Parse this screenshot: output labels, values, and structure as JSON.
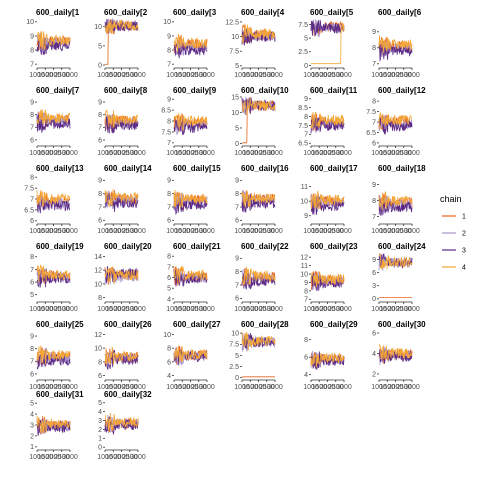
{
  "chart_data": {
    "type": "line",
    "facet_layout": {
      "columns": 6,
      "rows": 6
    },
    "x_ticks": [
      1000,
      1500,
      2000,
      2500,
      3000
    ],
    "xlim": [
      1000,
      3000
    ],
    "legend": {
      "title": "chain",
      "position": "right",
      "entries": [
        {
          "label": "1",
          "color": "#e8641b"
        },
        {
          "label": "2",
          "color": "#a795c8"
        },
        {
          "label": "3",
          "color": "#5b2a86"
        },
        {
          "label": "4",
          "color": "#f4a636"
        }
      ]
    },
    "panels": [
      {
        "title": "600_daily[1",
        "yticks": [
          7,
          8,
          9,
          10
        ],
        "ylim": [
          6.8,
          10.2
        ],
        "means": [
          8.6,
          8.5,
          8.3,
          8.7
        ]
      },
      {
        "title": "600_daily[2",
        "yticks": [
          0,
          5,
          10
        ],
        "ylim": [
          -0.5,
          12
        ],
        "means": [
          10.3,
          10.4,
          10.2,
          10.3
        ],
        "stuck": {
          "chain": 1,
          "value": 0.2,
          "until": 1200
        }
      },
      {
        "title": "600_daily[3",
        "yticks": [
          7,
          8,
          9,
          10
        ],
        "ylim": [
          6.8,
          10.2
        ],
        "means": [
          8.4,
          8.2,
          8.0,
          8.5
        ]
      },
      {
        "title": "600_daily[4",
        "yticks": [
          5.0,
          7.5,
          10.0,
          12.5
        ],
        "ylim": [
          4.8,
          13
        ],
        "means": [
          10.3,
          10.1,
          10.0,
          10.5
        ]
      },
      {
        "title": "600_daily[5",
        "yticks": [
          0.0,
          2.5,
          5.0,
          7.5
        ],
        "ylim": [
          -0.3,
          8.5
        ],
        "means": [
          7.0,
          6.9,
          6.8,
          7.1
        ],
        "stuck": {
          "chain": 4,
          "value": 0.3,
          "until": 2800
        }
      },
      {
        "title": "600_daily[6",
        "yticks": [
          7,
          8,
          9
        ],
        "ylim": [
          6.8,
          9.8
        ],
        "means": [
          8.1,
          8.0,
          7.8,
          8.2
        ]
      },
      {
        "title": "600_daily[7",
        "yticks": [
          6,
          7,
          8,
          9
        ],
        "ylim": [
          5.6,
          9.4
        ],
        "means": [
          7.6,
          7.5,
          7.3,
          7.7
        ]
      },
      {
        "title": "600_daily[8",
        "yticks": [
          6,
          7,
          8,
          9
        ],
        "ylim": [
          5.6,
          9.4
        ],
        "means": [
          7.5,
          7.4,
          7.2,
          7.6
        ]
      },
      {
        "title": "600_daily[9",
        "yticks": [
          7.0,
          7.5,
          8.0,
          8.5,
          9.0
        ],
        "ylim": [
          6.9,
          9.1
        ],
        "means": [
          7.9,
          7.8,
          7.7,
          8.0
        ]
      },
      {
        "title": "600_daily[10",
        "yticks": [
          0,
          5,
          10,
          15
        ],
        "ylim": [
          -0.5,
          15
        ],
        "means": [
          12.2,
          12.4,
          12.1,
          12.3
        ],
        "stuck": {
          "chain": 1,
          "value": 0.2,
          "until": 1300
        }
      },
      {
        "title": "600_daily[11",
        "yticks": [
          6.5,
          7.0,
          7.5,
          8.0,
          8.5,
          9.0
        ],
        "ylim": [
          6.4,
          9.1
        ],
        "means": [
          7.7,
          7.6,
          7.5,
          7.8
        ]
      },
      {
        "title": "600_daily[12",
        "yticks": [
          6.0,
          6.5,
          7.0,
          7.5,
          8.0
        ],
        "ylim": [
          5.9,
          8.2
        ],
        "means": [
          7.0,
          6.9,
          6.8,
          7.1
        ]
      },
      {
        "title": "600_daily[13",
        "yticks": [
          6.0,
          6.5,
          7.0,
          7.5,
          8.0
        ],
        "ylim": [
          5.9,
          8.1
        ],
        "means": [
          6.9,
          6.8,
          6.7,
          7.0
        ]
      },
      {
        "title": "600_daily[14",
        "yticks": [
          6,
          7,
          8,
          9
        ],
        "ylim": [
          5.8,
          9.4
        ],
        "means": [
          7.6,
          7.5,
          7.3,
          7.7
        ]
      },
      {
        "title": "600_daily[15",
        "yticks": [
          6,
          7,
          8,
          9
        ],
        "ylim": [
          5.8,
          9.4
        ],
        "means": [
          7.5,
          7.4,
          7.2,
          7.6
        ]
      },
      {
        "title": "600_daily[16",
        "yticks": [
          6,
          7,
          8,
          9
        ],
        "ylim": [
          5.8,
          9.4
        ],
        "means": [
          7.6,
          7.5,
          7.3,
          7.7
        ]
      },
      {
        "title": "600_daily[17",
        "yticks": [
          9,
          10,
          11
        ],
        "ylim": [
          8.5,
          11.8
        ],
        "means": [
          10.0,
          9.9,
          9.7,
          10.1
        ]
      },
      {
        "title": "600_daily[18",
        "yticks": [
          7,
          8,
          9
        ],
        "ylim": [
          6.6,
          9.6
        ],
        "means": [
          7.9,
          7.8,
          7.6,
          8.0
        ]
      },
      {
        "title": "600_daily[19",
        "yticks": [
          5,
          6,
          7,
          8
        ],
        "ylim": [
          4.5,
          8.3
        ],
        "means": [
          6.5,
          6.4,
          6.3,
          6.6
        ]
      },
      {
        "title": "600_daily[20",
        "yticks": [
          8,
          10,
          12,
          14
        ],
        "ylim": [
          7.5,
          14.5
        ],
        "means": [
          11.2,
          11.0,
          11.6,
          11.3
        ]
      },
      {
        "title": "600_daily[21",
        "yticks": [
          4,
          5,
          6,
          7,
          8
        ],
        "ylim": [
          3.8,
          8.3
        ],
        "means": [
          6.1,
          6.0,
          5.9,
          6.2
        ]
      },
      {
        "title": "600_daily[22",
        "yticks": [
          6,
          7,
          8,
          9
        ],
        "ylim": [
          5.8,
          9.4
        ],
        "means": [
          7.6,
          7.5,
          7.3,
          7.7
        ]
      },
      {
        "title": "600_daily[23",
        "yticks": [
          7,
          8,
          9,
          10,
          11,
          12
        ],
        "ylim": [
          6.8,
          12.5
        ],
        "means": [
          9.3,
          9.2,
          9.0,
          9.4
        ]
      },
      {
        "title": "600_daily[24",
        "yticks": [
          0,
          3,
          6,
          9
        ],
        "ylim": [
          -0.5,
          10.5
        ],
        "means": [
          8.4,
          8.3,
          8.2,
          8.5
        ],
        "stuck": {
          "chain": 1,
          "value": 0.3,
          "until": 3000
        }
      },
      {
        "title": "600_daily[25",
        "yticks": [
          6,
          7,
          8,
          9
        ],
        "ylim": [
          5.6,
          9.4
        ],
        "means": [
          7.4,
          7.3,
          7.1,
          7.5
        ]
      },
      {
        "title": "600_daily[26",
        "yticks": [
          6,
          8,
          10,
          12
        ],
        "ylim": [
          5.5,
          12.5
        ],
        "means": [
          8.6,
          8.5,
          8.3,
          8.8
        ]
      },
      {
        "title": "600_daily[27",
        "yticks": [
          4,
          6,
          8,
          10
        ],
        "ylim": [
          3.5,
          10.5
        ],
        "means": [
          7.0,
          6.9,
          6.8,
          7.1
        ]
      },
      {
        "title": "600_daily[28",
        "yticks": [
          0.0,
          2.5,
          5.0,
          7.5,
          10.0
        ],
        "ylim": [
          -0.3,
          10.5
        ],
        "means": [
          8.1,
          8.0,
          7.9,
          8.2
        ],
        "stuck": {
          "chain": 1,
          "value": 0.2,
          "until": 3000
        }
      },
      {
        "title": "600_daily[29",
        "yticks": [
          4,
          6,
          8
        ],
        "ylim": [
          3.5,
          9.0
        ],
        "means": [
          5.8,
          5.7,
          5.6,
          5.9
        ]
      },
      {
        "title": "600_daily[30",
        "yticks": [
          2,
          4,
          6
        ],
        "ylim": [
          1.5,
          6.2
        ],
        "means": [
          3.9,
          3.8,
          3.7,
          4.0
        ]
      },
      {
        "title": "600_daily[31",
        "yticks": [
          1,
          2,
          3,
          4,
          5
        ],
        "ylim": [
          0.8,
          5.2
        ],
        "means": [
          3.0,
          2.9,
          2.8,
          3.1
        ]
      },
      {
        "title": "600_daily[32",
        "yticks": [
          0,
          1,
          2,
          3,
          4,
          5
        ],
        "ylim": [
          -0.2,
          5.2
        ],
        "means": [
          2.7,
          2.6,
          2.5,
          2.8
        ]
      }
    ]
  }
}
